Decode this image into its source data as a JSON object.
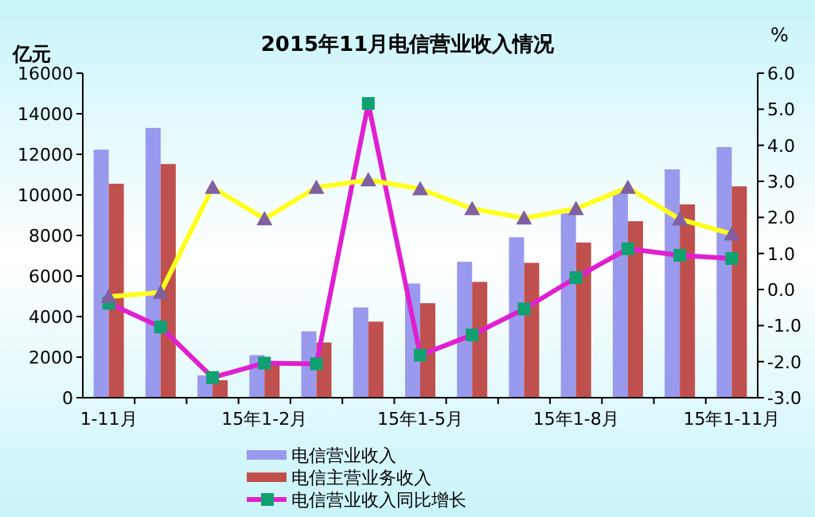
{
  "chart_data": {
    "type": "bar",
    "title": "2015年11月电信营业收入情况",
    "ylabel": "亿元",
    "y2label": "%",
    "categories": [
      "1-11月",
      null,
      null,
      "15年1-2月",
      null,
      null,
      "15年1-5月",
      null,
      null,
      "15年1-8月",
      null,
      null,
      "15年1-11月"
    ],
    "series": [
      {
        "name": "电信营业收入",
        "color": "#9999ee",
        "values": [
          12230,
          13300,
          1100,
          2100,
          3270,
          4450,
          5630,
          6700,
          7910,
          9090,
          10210,
          11260,
          12360
        ]
      },
      {
        "name": "电信主营业务收入",
        "color": "#c0504d",
        "values": [
          10550,
          11520,
          860,
          1800,
          2720,
          3750,
          4660,
          5710,
          6650,
          7650,
          8700,
          9530,
          10420
        ]
      },
      {
        "name": "电信营业收入同比增长",
        "type": "line",
        "axis": "y2",
        "color": "#e020d0",
        "marker": "square",
        "values": [
          -0.38,
          -1.04,
          -2.44,
          -2.04,
          -2.06,
          5.16,
          -1.82,
          -1.26,
          -0.54,
          0.33,
          1.13,
          0.95,
          0.86
        ]
      },
      {
        "type": "line",
        "axis": "y2",
        "color": "#ffff20",
        "marker": "triangle",
        "values": [
          -0.2,
          -0.08,
          2.83,
          1.96,
          2.83,
          3.04,
          2.79,
          2.24,
          1.98,
          2.24,
          2.83,
          1.95,
          1.54
        ]
      }
    ],
    "ylim": [
      0,
      16000
    ],
    "yticks": [
      0,
      2000,
      4000,
      6000,
      8000,
      10000,
      12000,
      14000,
      16000
    ],
    "y2lim": [
      -3,
      6
    ],
    "y2ticks": [
      {
        "value": -3,
        "label": "-3.0"
      },
      {
        "value": -2,
        "label": "-2.0"
      },
      {
        "value": -1,
        "label": "-1.0"
      },
      {
        "value": 0,
        "label": "0.0"
      },
      {
        "value": 1,
        "label": "1.0"
      },
      {
        "value": 2,
        "label": "2.0"
      },
      {
        "value": 3,
        "label": "3.0"
      },
      {
        "value": 4,
        "label": "4.0"
      },
      {
        "value": 5,
        "label": "5.0"
      },
      {
        "value": 6,
        "label": "6.0"
      }
    ],
    "grid": false,
    "legend": "bottom"
  }
}
